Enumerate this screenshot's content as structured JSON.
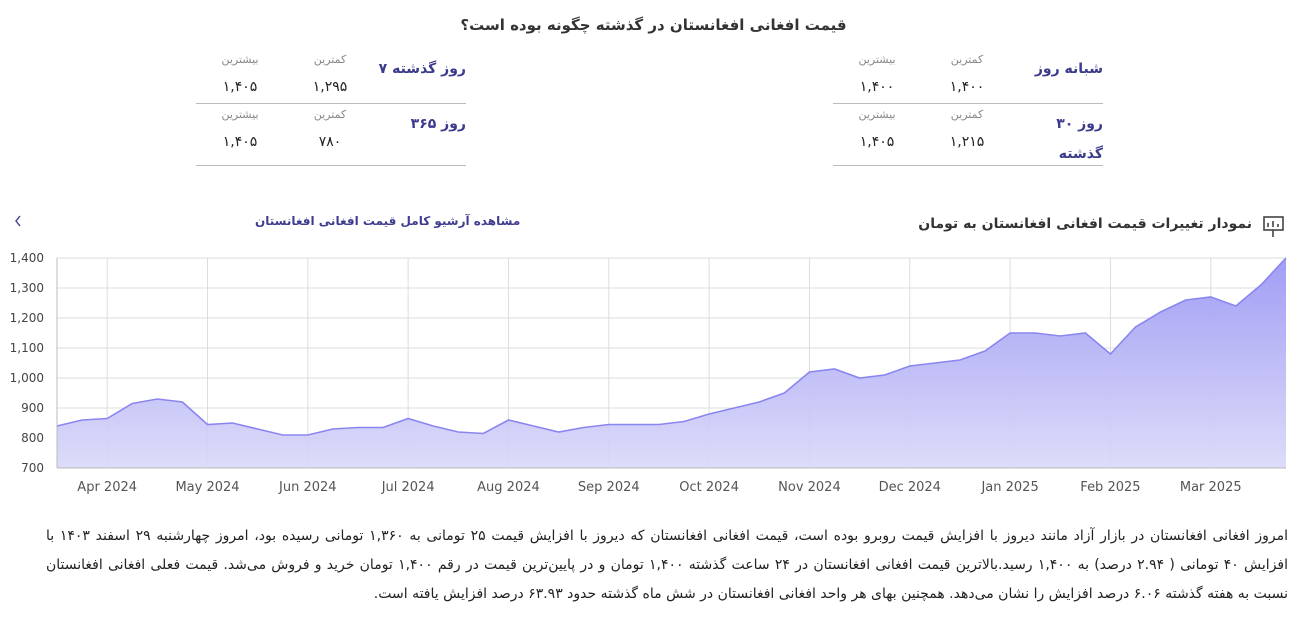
{
  "header": {
    "title": "قیمت افغانی افغانستان در گذشته چگونه بوده است؟"
  },
  "stats": [
    {
      "period": "شبانه روز",
      "min_label": "کمترین",
      "min": "۱,۴۰۰",
      "max_label": "بیشترین",
      "max": "۱,۴۰۰"
    },
    {
      "period": "۳۰ روز گذشته",
      "min_label": "کمترین",
      "min": "۱,۲۱۵",
      "max_label": "بیشترین",
      "max": "۱,۴۰۵"
    },
    {
      "period": "۷ روز گذشته",
      "min_label": "کمترین",
      "min": "۱,۲۹۵",
      "max_label": "بیشترین",
      "max": "۱,۴۰۵"
    },
    {
      "period": "۳۶۵ روز",
      "min_label": "کمترین",
      "min": "۷۸۰",
      "max_label": "بیشترین",
      "max": "۱,۴۰۵"
    }
  ],
  "chart_header": {
    "title": "نمودار تغییرات قیمت افغانی افغانستان به تومان",
    "link": "مشاهده آرشیو کامل قیمت افغانی افغانستان"
  },
  "chart_data": {
    "type": "area",
    "color": "#8a86f0",
    "categories": [
      null,
      null,
      "Apr 2024",
      null,
      null,
      null,
      "May 2024",
      null,
      null,
      null,
      "Jun 2024",
      null,
      null,
      null,
      "Jul 2024",
      null,
      null,
      null,
      "Aug 2024",
      null,
      null,
      null,
      "Sep 2024",
      null,
      null,
      null,
      "Oct 2024",
      null,
      null,
      null,
      "Nov 2024",
      null,
      null,
      null,
      "Dec 2024",
      null,
      null,
      null,
      "Jan 2025",
      null,
      null,
      null,
      "Feb 2025",
      null,
      null,
      null,
      "Mar 2025",
      null,
      null,
      null
    ],
    "values": [
      840,
      860,
      865,
      915,
      930,
      920,
      845,
      850,
      830,
      810,
      810,
      830,
      835,
      835,
      865,
      840,
      820,
      815,
      860,
      840,
      820,
      835,
      845,
      845,
      845,
      855,
      880,
      900,
      920,
      950,
      1020,
      1030,
      1000,
      1010,
      1040,
      1050,
      1060,
      1090,
      1150,
      1150,
      1140,
      1150,
      1080,
      1170,
      1220,
      1260,
      1270,
      1240,
      1310,
      1400
    ],
    "ylim": [
      700,
      1400
    ],
    "yticks": [
      700,
      800,
      900,
      {
        "value": 1000,
        "label": "1,000"
      },
      {
        "value": 1100,
        "label": "1,100"
      },
      {
        "value": 1200,
        "label": "1,200"
      },
      {
        "value": 1300,
        "label": "1,300"
      },
      {
        "value": 1400,
        "label": "1,400"
      }
    ],
    "grid": true
  },
  "description": "امروز افغانی افغانستان در بازار آزاد مانند دیروز با افزایش قیمت روبرو بوده است، قیمت افغانی افغانستان که دیروز با افزایش قیمت ۲۵ تومانی به ۱,۳۶۰ تومانی رسیده بود، امروز چهارشنبه ۲۹ اسفند ۱۴۰۳ با افزایش ۴۰ تومانی ( ۲.۹۴ درصد) به ۱,۴۰۰ رسید.بالاترین قیمت افغانی افغانستان در ۲۴ ساعت گذشته ۱,۴۰۰ تومان و در پایین‌ترین قیمت در رقم ۱,۴۰۰ تومان خرید و فروش می‌شد. قیمت فعلی افغانی افغانستان نسبت به هفته گذشته ۶.۰۶ درصد افزایش را نشان می‌دهد. همچنین بهای هر واحد افغانی افغانستان در شش ماه گذشته حدود ۶۳.۹۳ درصد افزایش یافته است."
}
